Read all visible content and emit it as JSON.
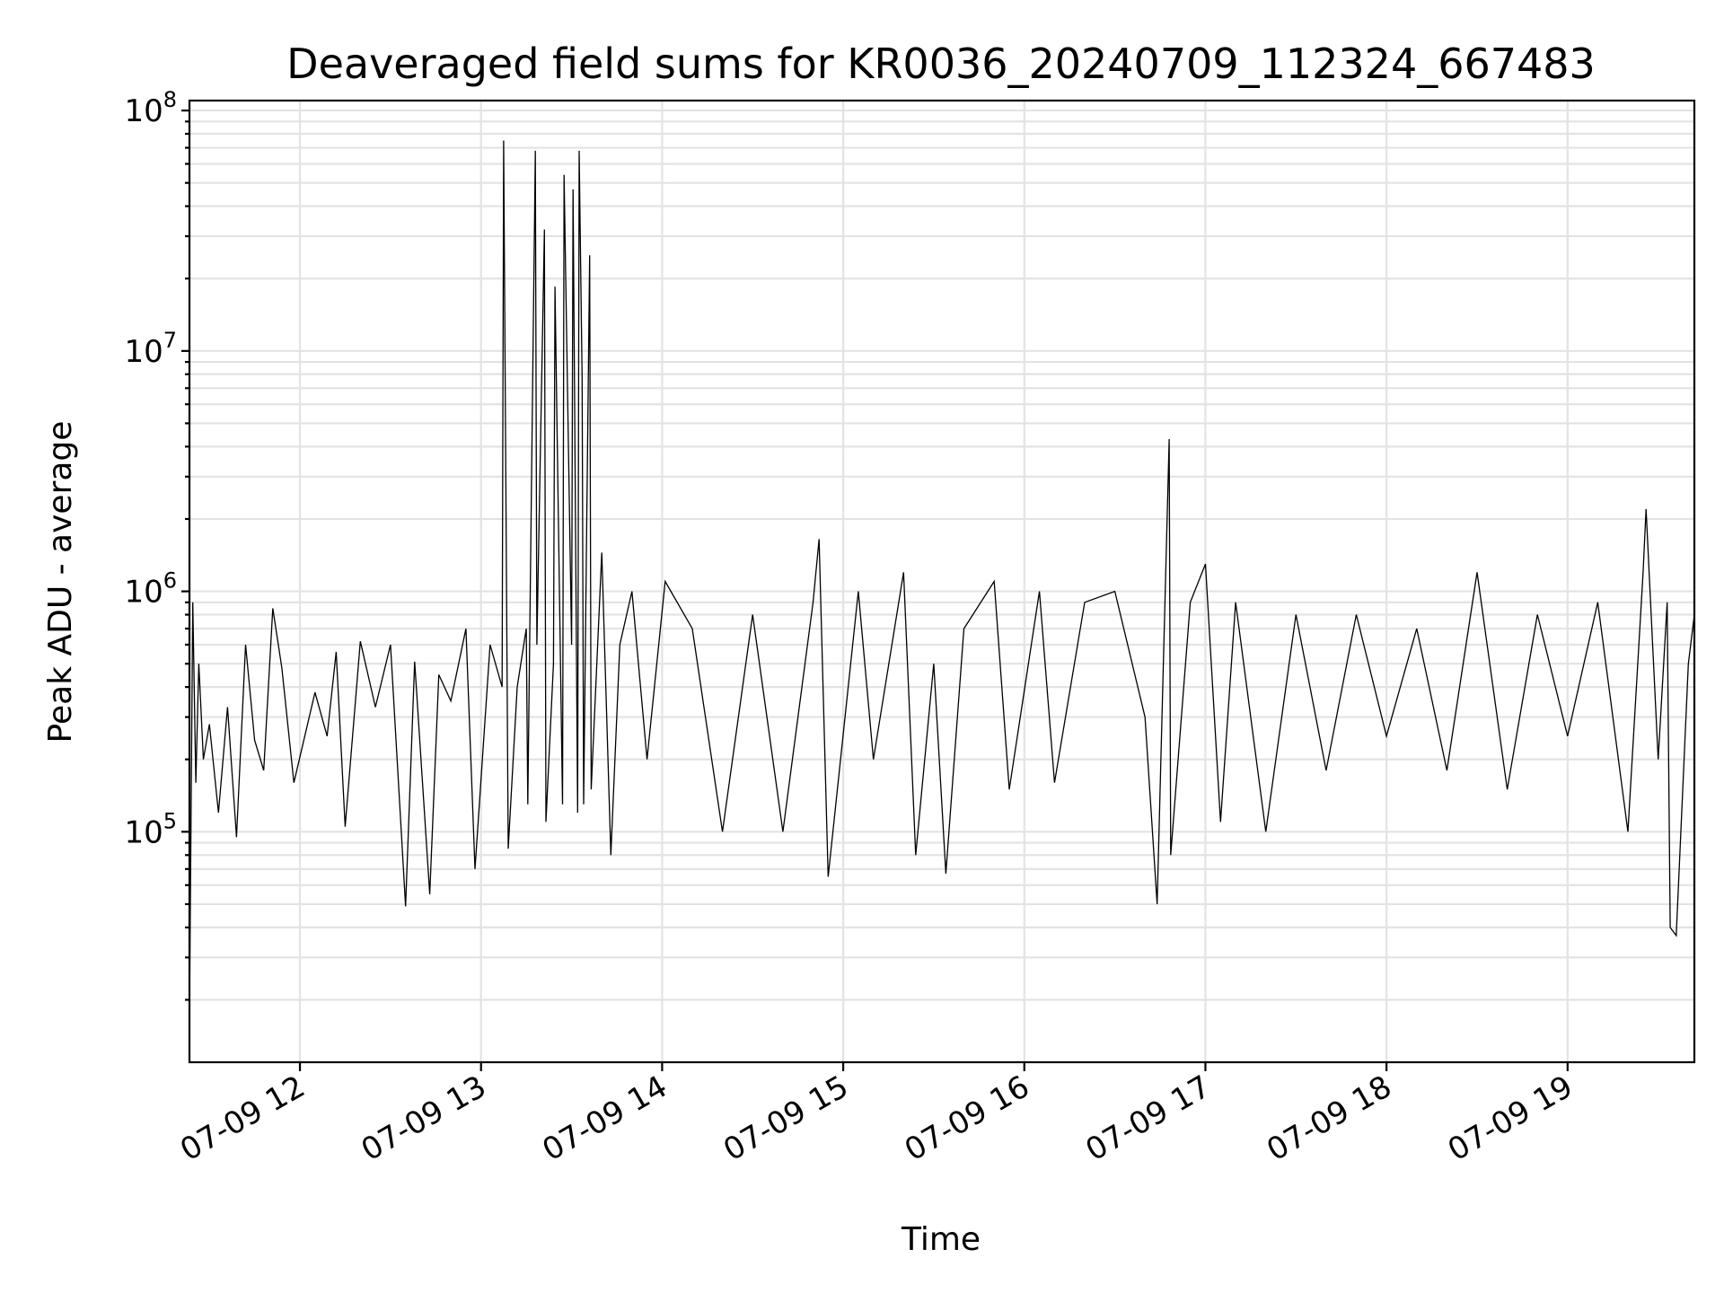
{
  "chart_data": {
    "type": "line",
    "title": "Deaveraged field sums for KR0036_20240709_112324_667483",
    "xlabel": "Time",
    "ylabel": "Peak ADU - average",
    "yscale": "log",
    "ylim": [
      11000,
      110000000
    ],
    "xlim": [
      "2024-07-09 11:23:24",
      "2024-07-09 19:42:00"
    ],
    "grid": true,
    "grid_color": "#e3e3e3",
    "line_color": "#000000",
    "x_ticks": [
      {
        "value": "2024-07-09 12:00",
        "label": "07-09 12"
      },
      {
        "value": "2024-07-09 13:00",
        "label": "07-09 13"
      },
      {
        "value": "2024-07-09 14:00",
        "label": "07-09 14"
      },
      {
        "value": "2024-07-09 15:00",
        "label": "07-09 15"
      },
      {
        "value": "2024-07-09 16:00",
        "label": "07-09 16"
      },
      {
        "value": "2024-07-09 17:00",
        "label": "07-09 17"
      },
      {
        "value": "2024-07-09 18:00",
        "label": "07-09 18"
      },
      {
        "value": "2024-07-09 19:00",
        "label": "07-09 19"
      }
    ],
    "y_ticks": [
      {
        "value": 100000,
        "base": "10",
        "exp": "5"
      },
      {
        "value": 1000000,
        "base": "10",
        "exp": "6"
      },
      {
        "value": 10000000,
        "base": "10",
        "exp": "7"
      },
      {
        "value": 100000000,
        "base": "10",
        "exp": "8"
      }
    ],
    "series": [
      {
        "x": [
          "2024-07-09 11:23:24",
          "2024-07-09 11:24:30",
          "2024-07-09 11:25:30",
          "2024-07-09 11:26:30",
          "2024-07-09 11:28:00",
          "2024-07-09 11:30:00",
          "2024-07-09 11:33:00",
          "2024-07-09 11:36:00",
          "2024-07-09 11:39:00",
          "2024-07-09 11:42:00",
          "2024-07-09 11:45:00",
          "2024-07-09 11:48:00",
          "2024-07-09 11:51:00",
          "2024-07-09 11:54:00",
          "2024-07-09 11:58:00",
          "2024-07-09 12:05:00",
          "2024-07-09 12:09:00",
          "2024-07-09 12:12:00",
          "2024-07-09 12:15:00",
          "2024-07-09 12:20:00",
          "2024-07-09 12:25:00",
          "2024-07-09 12:30:00",
          "2024-07-09 12:35:00",
          "2024-07-09 12:38:00",
          "2024-07-09 12:43:00",
          "2024-07-09 12:46:00",
          "2024-07-09 12:50:00",
          "2024-07-09 12:55:00",
          "2024-07-09 12:58:00",
          "2024-07-09 13:03:00",
          "2024-07-09 13:07:00",
          "2024-07-09 13:07:30",
          "2024-07-09 13:09:00",
          "2024-07-09 13:12:00",
          "2024-07-09 13:15:00",
          "2024-07-09 13:15:30",
          "2024-07-09 13:18:00",
          "2024-07-09 13:18:30",
          "2024-07-09 13:21:00",
          "2024-07-09 13:21:30",
          "2024-07-09 13:24:00",
          "2024-07-09 13:24:30",
          "2024-07-09 13:27:00",
          "2024-07-09 13:27:30",
          "2024-07-09 13:30:00",
          "2024-07-09 13:30:30",
          "2024-07-09 13:32:00",
          "2024-07-09 13:32:30",
          "2024-07-09 13:33:30",
          "2024-07-09 13:34:00",
          "2024-07-09 13:36:00",
          "2024-07-09 13:36:30",
          "2024-07-09 13:40:00",
          "2024-07-09 13:43:00",
          "2024-07-09 13:46:00",
          "2024-07-09 13:50:00",
          "2024-07-09 13:55:00",
          "2024-07-09 14:01:00",
          "2024-07-09 14:10:00",
          "2024-07-09 14:20:00",
          "2024-07-09 14:30:00",
          "2024-07-09 14:40:00",
          "2024-07-09 14:50:00",
          "2024-07-09 14:52:00",
          "2024-07-09 14:55:00",
          "2024-07-09 15:05:00",
          "2024-07-09 15:10:00",
          "2024-07-09 15:20:00",
          "2024-07-09 15:24:00",
          "2024-07-09 15:30:00",
          "2024-07-09 15:34:00",
          "2024-07-09 15:40:00",
          "2024-07-09 15:50:00",
          "2024-07-09 15:55:00",
          "2024-07-09 16:05:00",
          "2024-07-09 16:10:00",
          "2024-07-09 16:20:00",
          "2024-07-09 16:30:00",
          "2024-07-09 16:40:00",
          "2024-07-09 16:44:00",
          "2024-07-09 16:48:00",
          "2024-07-09 16:48:30",
          "2024-07-09 16:55:00",
          "2024-07-09 17:00:00",
          "2024-07-09 17:05:00",
          "2024-07-09 17:10:00",
          "2024-07-09 17:20:00",
          "2024-07-09 17:30:00",
          "2024-07-09 17:40:00",
          "2024-07-09 17:50:00",
          "2024-07-09 18:00:00",
          "2024-07-09 18:10:00",
          "2024-07-09 18:20:00",
          "2024-07-09 18:30:00",
          "2024-07-09 18:40:00",
          "2024-07-09 18:50:00",
          "2024-07-09 19:00:00",
          "2024-07-09 19:10:00",
          "2024-07-09 19:20:00",
          "2024-07-09 19:25:00",
          "2024-07-09 19:26:00",
          "2024-07-09 19:30:00",
          "2024-07-09 19:33:00",
          "2024-07-09 19:34:00",
          "2024-07-09 19:36:00",
          "2024-07-09 19:40:00",
          "2024-07-09 19:42:00"
        ],
        "values": [
          17000,
          900000,
          160000,
          500000,
          200000,
          280000,
          120000,
          330000,
          95000,
          600000,
          240000,
          180000,
          850000,
          480000,
          160000,
          380000,
          250000,
          560000,
          105000,
          620000,
          330000,
          600000,
          49000,
          510000,
          55000,
          450000,
          350000,
          700000,
          70000,
          600000,
          400000,
          75000000,
          85000,
          400000,
          700000,
          130000,
          68000000,
          600000,
          32000000,
          110000,
          500000,
          18500000,
          130000,
          54000000,
          600000,
          47000000,
          120000,
          68000000,
          7700000,
          130000,
          25000000,
          150000,
          1450000,
          80000,
          600000,
          1000000,
          200000,
          1100000,
          700000,
          100000,
          800000,
          100000,
          900000,
          1650000,
          65000,
          1000000,
          200000,
          1200000,
          80000,
          500000,
          67000,
          700000,
          1100000,
          150000,
          1000000,
          160000,
          900000,
          1000000,
          300000,
          50000,
          4300000,
          80000,
          900000,
          1300000,
          110000,
          900000,
          100000,
          800000,
          180000,
          800000,
          250000,
          700000,
          180000,
          1200000,
          150000,
          800000,
          250000,
          900000,
          100000,
          1200000,
          2200000,
          200000,
          900000,
          40000,
          37000,
          500000,
          800000
        ]
      }
    ]
  }
}
